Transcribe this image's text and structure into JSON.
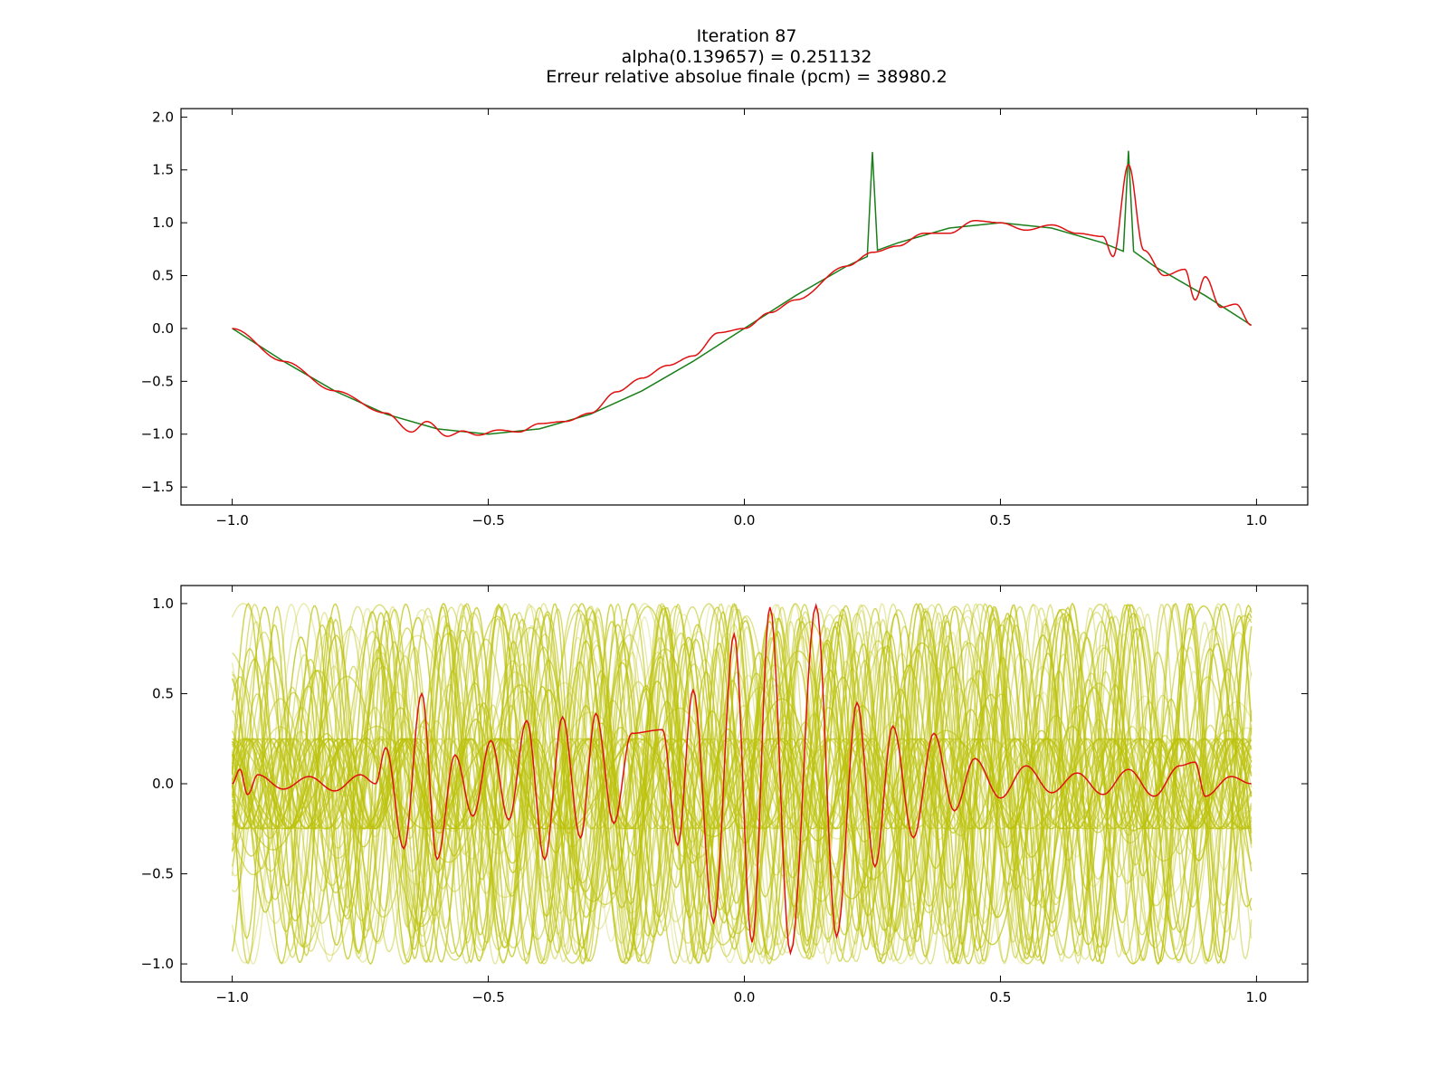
{
  "title": {
    "line1": "Iteration 87",
    "line2": "alpha(0.139657) = 0.251132",
    "line3": "Erreur relative absolue finale (pcm) = 38980.2"
  },
  "colors": {
    "target": "#1a7f1a",
    "approx": "#e01010",
    "basis": "#bcc20a"
  },
  "chart_data": [
    {
      "type": "line",
      "title": "",
      "xlabel": "",
      "ylabel": "",
      "xlim": [
        -1.1,
        1.1
      ],
      "ylim": [
        -1.67,
        2.08
      ],
      "xticks": [
        "−1.0",
        "−0.5",
        "0.0",
        "0.5",
        "1.0"
      ],
      "xtick_values": [
        -1.0,
        -0.5,
        0.0,
        0.5,
        1.0
      ],
      "yticks": [
        "2.0",
        "1.5",
        "1.0",
        "0.5",
        "0.0",
        "−0.5",
        "−1.0",
        "−1.5"
      ],
      "ytick_values": [
        2.0,
        1.5,
        1.0,
        0.5,
        0.0,
        -0.5,
        -1.0,
        -1.5
      ],
      "grid": false,
      "series": [
        {
          "color": "green",
          "description": "sin(pi*x) with spikes",
          "x": [
            -1.0,
            -0.9,
            -0.8,
            -0.7,
            -0.6,
            -0.5,
            -0.4,
            -0.3,
            -0.2,
            -0.1,
            0.0,
            0.1,
            0.2,
            0.24,
            0.25,
            0.26,
            0.3,
            0.4,
            0.5,
            0.6,
            0.7,
            0.74,
            0.75,
            0.76,
            0.8,
            0.9,
            0.99
          ],
          "y": [
            0.0,
            -0.31,
            -0.59,
            -0.81,
            -0.95,
            -1.0,
            -0.95,
            -0.81,
            -0.59,
            -0.31,
            0.0,
            0.31,
            0.59,
            0.68,
            1.67,
            0.74,
            0.81,
            0.95,
            1.0,
            0.95,
            0.81,
            0.73,
            1.68,
            0.73,
            0.59,
            0.31,
            0.03
          ]
        },
        {
          "color": "red",
          "description": "approximation (oscillating around target)",
          "x": [
            -1.0,
            -0.9,
            -0.8,
            -0.7,
            -0.65,
            -0.62,
            -0.58,
            -0.55,
            -0.52,
            -0.48,
            -0.44,
            -0.4,
            -0.35,
            -0.3,
            -0.25,
            -0.2,
            -0.15,
            -0.1,
            -0.05,
            0.0,
            0.05,
            0.1,
            0.2,
            0.25,
            0.3,
            0.35,
            0.4,
            0.45,
            0.5,
            0.55,
            0.6,
            0.65,
            0.7,
            0.72,
            0.75,
            0.78,
            0.82,
            0.86,
            0.88,
            0.9,
            0.93,
            0.96,
            0.99
          ],
          "y": [
            0.0,
            -0.31,
            -0.59,
            -0.8,
            -0.98,
            -0.88,
            -1.02,
            -0.97,
            -1.01,
            -0.96,
            -0.98,
            -0.9,
            -0.88,
            -0.8,
            -0.6,
            -0.47,
            -0.35,
            -0.26,
            -0.04,
            0.0,
            0.15,
            0.27,
            0.59,
            0.72,
            0.78,
            0.9,
            0.9,
            1.02,
            1.0,
            0.93,
            0.98,
            0.9,
            0.87,
            0.68,
            1.55,
            0.74,
            0.5,
            0.56,
            0.27,
            0.49,
            0.2,
            0.23,
            0.03
          ]
        }
      ]
    },
    {
      "type": "line",
      "title": "",
      "xlabel": "",
      "ylabel": "",
      "xlim": [
        -1.1,
        1.1
      ],
      "ylim": [
        -1.1,
        1.1
      ],
      "xticks": [
        "−1.0",
        "−0.5",
        "0.0",
        "0.5",
        "1.0"
      ],
      "xtick_values": [
        -1.0,
        -0.5,
        0.0,
        0.5,
        1.0
      ],
      "yticks": [
        "1.0",
        "0.5",
        "0.0",
        "−0.5",
        "−1.0"
      ],
      "ytick_values": [
        1.0,
        0.5,
        0.0,
        -0.5,
        -1.0
      ],
      "grid": false,
      "series": [
        {
          "color": "yellow-green",
          "description": "many basis functions (oscillating, amplitude up to 1.0)",
          "count": 60
        },
        {
          "color": "red",
          "description": "highlighted basis function",
          "peaks": [
            {
              "x": -0.7,
              "y": 0.2
            },
            {
              "x": -0.665,
              "y": -0.36
            },
            {
              "x": -0.63,
              "y": 0.5
            },
            {
              "x": -0.6,
              "y": -0.42
            },
            {
              "x": -0.565,
              "y": 0.16
            },
            {
              "x": -0.53,
              "y": -0.18
            },
            {
              "x": -0.495,
              "y": 0.24
            },
            {
              "x": -0.46,
              "y": -0.2
            },
            {
              "x": -0.425,
              "y": 0.35
            },
            {
              "x": -0.39,
              "y": -0.42
            },
            {
              "x": -0.355,
              "y": 0.37
            },
            {
              "x": -0.32,
              "y": -0.3
            },
            {
              "x": -0.29,
              "y": 0.39
            },
            {
              "x": -0.255,
              "y": -0.22
            },
            {
              "x": -0.22,
              "y": 0.28
            },
            {
              "x": -0.16,
              "y": 0.3
            },
            {
              "x": -0.13,
              "y": -0.34
            },
            {
              "x": -0.1,
              "y": 0.52
            },
            {
              "x": -0.06,
              "y": -0.77
            },
            {
              "x": -0.02,
              "y": 0.83
            },
            {
              "x": 0.015,
              "y": -0.88
            },
            {
              "x": 0.05,
              "y": 0.98
            },
            {
              "x": 0.09,
              "y": -0.94
            },
            {
              "x": 0.14,
              "y": 0.99
            },
            {
              "x": 0.18,
              "y": -0.85
            },
            {
              "x": 0.22,
              "y": 0.45
            },
            {
              "x": 0.255,
              "y": -0.46
            },
            {
              "x": 0.29,
              "y": 0.32
            },
            {
              "x": 0.33,
              "y": -0.3
            },
            {
              "x": 0.37,
              "y": 0.28
            },
            {
              "x": 0.41,
              "y": -0.15
            },
            {
              "x": 0.45,
              "y": 0.14
            }
          ]
        }
      ]
    }
  ]
}
